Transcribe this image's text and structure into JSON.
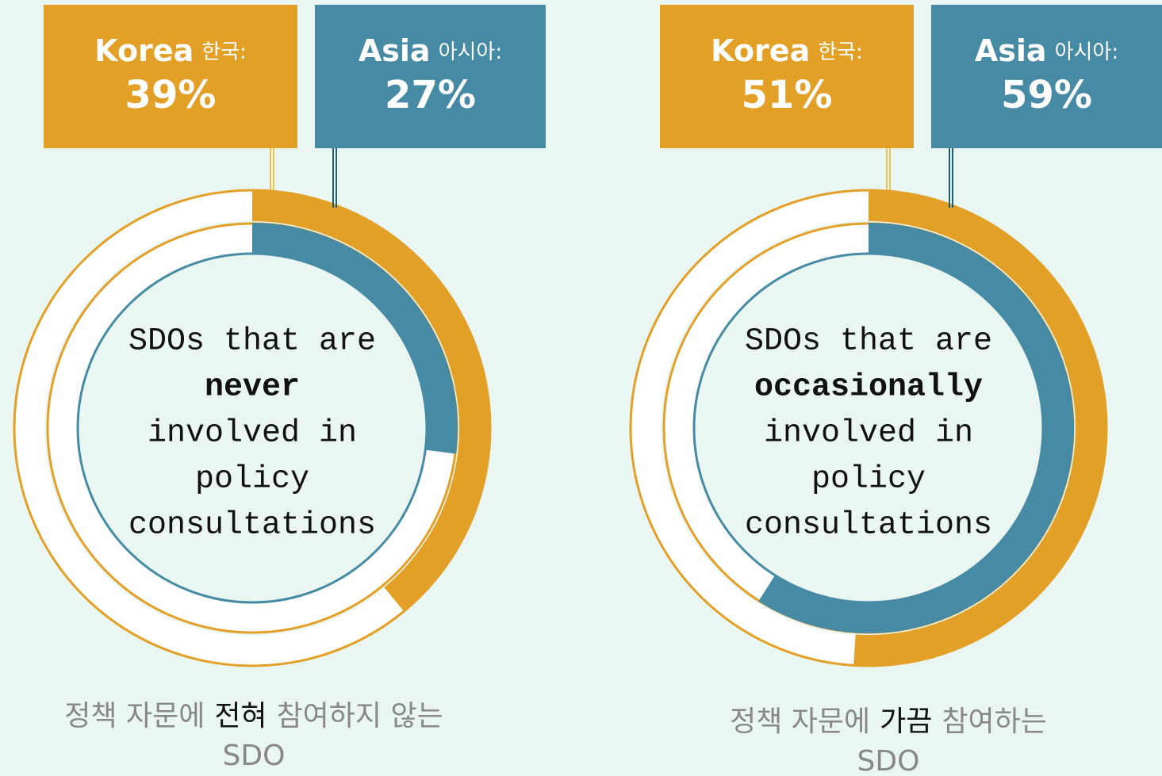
{
  "chart_data": [
    {
      "type": "donut",
      "series": [
        {
          "name": "Korea",
          "name_ko": "한국:",
          "color": "#e3a027",
          "values": [
            39
          ],
          "value_labels": [
            "39%"
          ]
        },
        {
          "name": "Asia",
          "name_ko": "아시아:",
          "color": "#468ba3",
          "values": [
            27
          ],
          "value_labels": [
            "27%"
          ]
        }
      ],
      "center_before": [
        "SDOs that are"
      ],
      "center_emphasis": "never",
      "center_after": [
        "involved in",
        "policy",
        "consultations"
      ],
      "caption_before": "정책 자문에",
      "caption_emphasis": "전혀",
      "caption_after": "참여하지 않는",
      "caption_line2": "SDO"
    },
    {
      "type": "donut",
      "series": [
        {
          "name": "Korea",
          "name_ko": "한국:",
          "color": "#e3a027",
          "values": [
            51
          ],
          "value_labels": [
            "51%"
          ]
        },
        {
          "name": "Asia",
          "name_ko": "아시아:",
          "color": "#468ba3",
          "values": [
            59
          ],
          "value_labels": [
            "59%"
          ]
        }
      ],
      "center_before": [
        "SDOs that are"
      ],
      "center_emphasis": "occasionally",
      "center_after": [
        "involved in",
        "policy",
        "consultations"
      ],
      "caption_before": "정책 자문에",
      "caption_emphasis": "가끔",
      "caption_after": "참여하는",
      "caption_line2": "SDO"
    }
  ]
}
